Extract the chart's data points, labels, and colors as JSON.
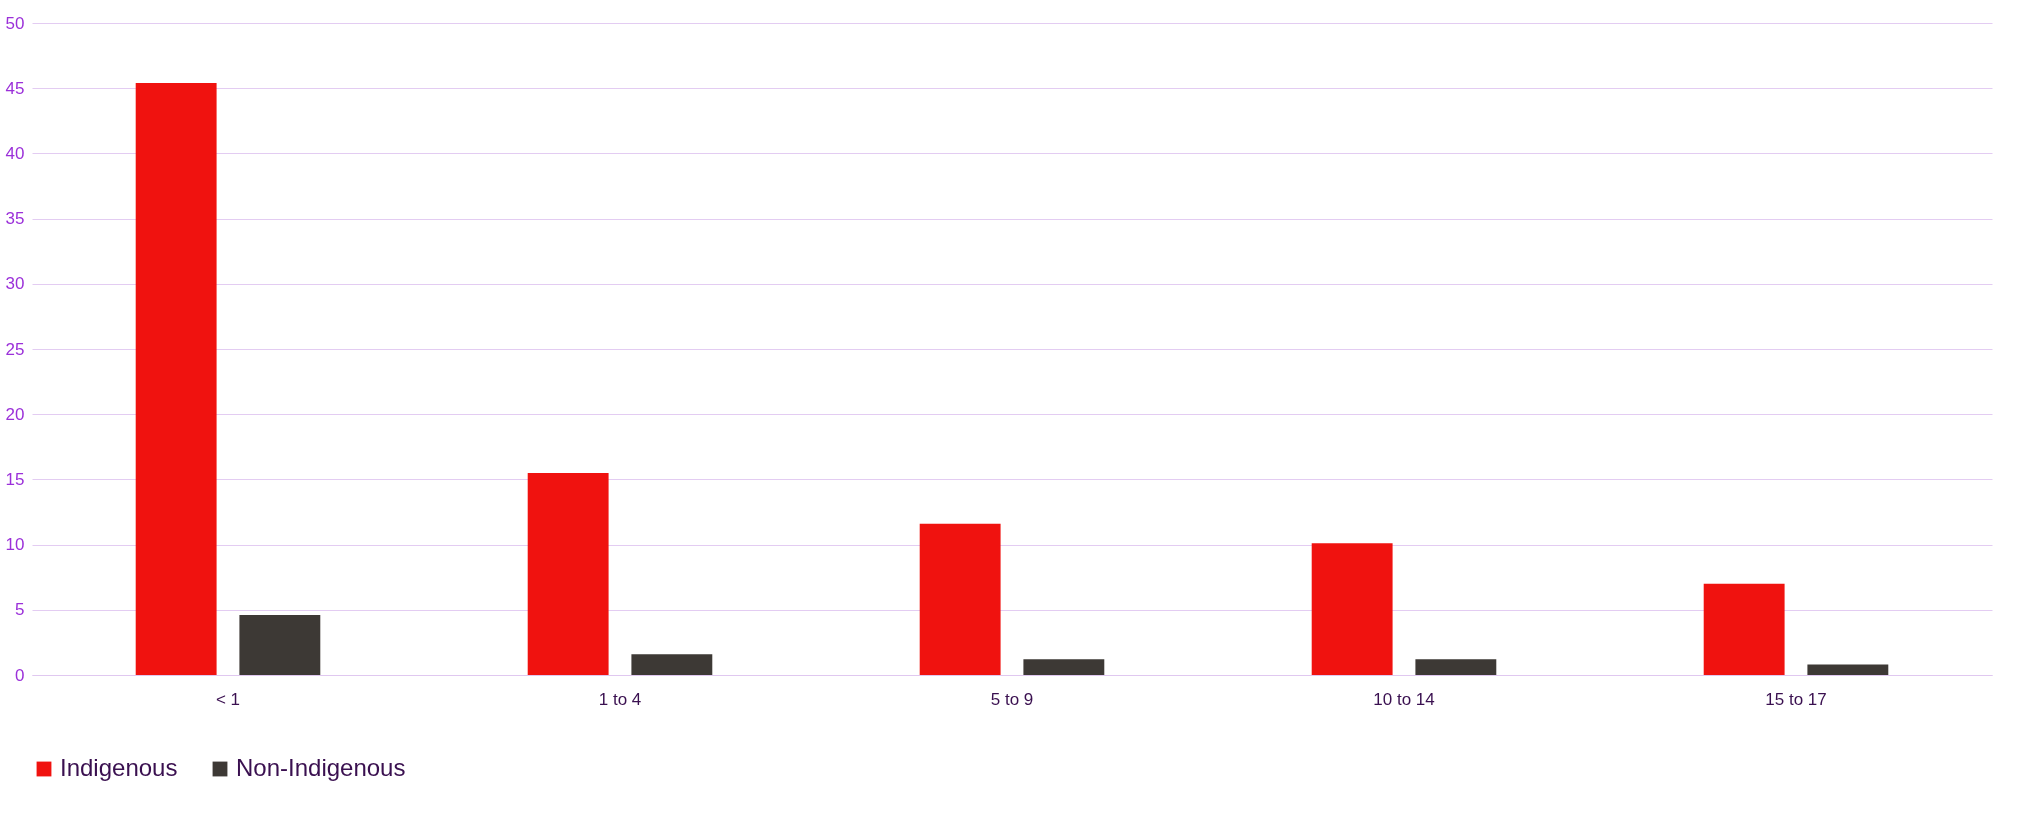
{
  "chart_data": {
    "type": "bar",
    "categories": [
      "< 1",
      "1 to 4",
      "5 to 9",
      "10 to 14",
      "15 to 17"
    ],
    "series": [
      {
        "name": "Indigenous",
        "color": "#f0120f",
        "values": [
          45.4,
          15.5,
          11.6,
          10.1,
          7.0
        ]
      },
      {
        "name": "Non-Indigenous",
        "color": "#3d3935",
        "values": [
          4.6,
          1.6,
          1.2,
          1.2,
          0.8
        ]
      }
    ],
    "ylim": [
      0,
      50
    ],
    "yticks": [
      0,
      5,
      10,
      15,
      20,
      25,
      30,
      35,
      40,
      45,
      50
    ],
    "grid": "y",
    "legend": "bottom"
  }
}
